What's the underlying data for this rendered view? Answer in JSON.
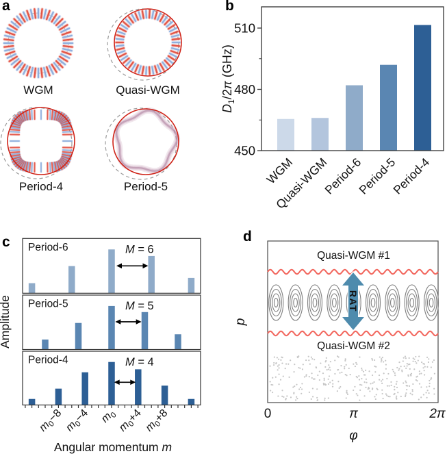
{
  "figure": {
    "panels": {
      "a": {
        "letter": "a",
        "modes": [
          {
            "caption": "WGM",
            "type": "wgm"
          },
          {
            "caption": "Quasi-WGM",
            "type": "quasi"
          },
          {
            "caption": "Period-4",
            "type": "p4"
          },
          {
            "caption": "Period-5",
            "type": "p5"
          }
        ]
      },
      "b": {
        "letter": "b"
      },
      "c": {
        "letter": "c"
      },
      "d": {
        "letter": "d"
      }
    }
  },
  "chart_data": [
    {
      "id": "b",
      "type": "bar",
      "categories": [
        "WGM",
        "Quasi-WGM",
        "Period-6",
        "Period-5",
        "Period-4"
      ],
      "values": [
        465.5,
        466,
        482,
        492,
        511.5
      ],
      "bar_colors": [
        "#ccd9e9",
        "#b3c5dd",
        "#8fabc9",
        "#5a86b2",
        "#2d5f95"
      ],
      "ylabel": "D1/2π (GHz)",
      "ylabel_parts": {
        "italic": "D",
        "sub": "1",
        "mid": "/2",
        "pi": "π",
        "unit": " (GHz)"
      },
      "yticks": [
        450,
        480,
        510
      ],
      "minor_yticks": [
        465,
        495
      ],
      "ylim": [
        450,
        520.5
      ],
      "grid": false,
      "frame": true
    },
    {
      "id": "c",
      "type": "bar",
      "ylabel": "Amplitude",
      "xlabel": "Angular momentum m",
      "xlabel_parts": {
        "text": "Angular momentum ",
        "italic": "m"
      },
      "x_unit": "m - m0 offset",
      "xlim": [
        -13.5,
        13.5
      ],
      "xticks": [
        {
          "offset": -8,
          "parts": [
            "m",
            "0",
            "−8"
          ],
          "label": "m0−8"
        },
        {
          "offset": -4,
          "parts": [
            "m",
            "0",
            "−4"
          ],
          "label": "m0−4"
        },
        {
          "offset": 0,
          "parts": [
            "m",
            "0",
            ""
          ],
          "label": "m0"
        },
        {
          "offset": 4,
          "parts": [
            "m",
            "0",
            "+4"
          ],
          "label": "m0+4"
        },
        {
          "offset": 8,
          "parts": [
            "m",
            "0",
            "+8"
          ],
          "label": "m0+8"
        }
      ],
      "subplots": [
        {
          "label": "Period-6",
          "annotation": "M = 6",
          "annotation_parts": {
            "italic": "M",
            "rest": " = 6"
          },
          "color": "#8fabc9",
          "offsets": [
            -12,
            -6,
            0,
            6,
            12
          ],
          "heights": [
            0.23,
            0.62,
            1.0,
            0.85,
            0.35
          ]
        },
        {
          "label": "Period-5",
          "annotation": "M = 5",
          "annotation_parts": {
            "italic": "M",
            "rest": " = 5"
          },
          "color": "#5a86b2",
          "offsets": [
            -10,
            -5,
            0,
            5,
            10
          ],
          "heights": [
            0.23,
            0.61,
            1.0,
            0.86,
            0.35
          ]
        },
        {
          "label": "Period-4",
          "annotation": "M = 4",
          "annotation_parts": {
            "italic": "M",
            "rest": " = 4"
          },
          "color": "#2d5f95",
          "offsets": [
            -12,
            -8,
            -4,
            0,
            4,
            8,
            12
          ],
          "heights": [
            0.14,
            0.38,
            0.76,
            1.0,
            0.83,
            0.45,
            0.14
          ]
        }
      ]
    },
    {
      "id": "d",
      "type": "phase-space-diagram",
      "xlabel": "φ",
      "ylabel": "p",
      "xtick_labels": [
        "0",
        "π",
        "2π"
      ],
      "region_labels": [
        "Quasi-WGM #1",
        "Quasi-WGM #2"
      ],
      "arrow_label": "RAT",
      "n_islands": 9,
      "colors": {
        "separatrix": "#f2685f",
        "arrow": "#4e8bad",
        "island": "#7f7f7f",
        "chaos_dots": "#c6c6c6"
      }
    }
  ],
  "colors": {
    "mode_red": "#e14b3c",
    "mode_blue": "#8aabdc",
    "boundary_red": "#cf2318",
    "dashed_gray": "#9a9a9a",
    "pink_ring": "#bd93ae",
    "text": "#111111"
  }
}
